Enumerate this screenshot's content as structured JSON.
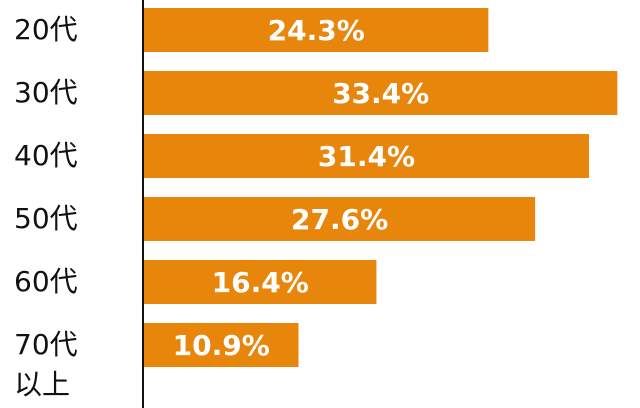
{
  "chart_data": {
    "type": "bar",
    "orientation": "horizontal",
    "categories": [
      "20代",
      "30代",
      "40代",
      "50代",
      "60代",
      "70代以上"
    ],
    "values": [
      24.3,
      33.4,
      31.4,
      27.6,
      16.4,
      10.9
    ],
    "value_labels": [
      "24.3%",
      "33.4%",
      "31.4%",
      "27.6%",
      "16.4%",
      "10.9%"
    ],
    "color": "#e8860c",
    "xlim": [
      0,
      35
    ]
  }
}
